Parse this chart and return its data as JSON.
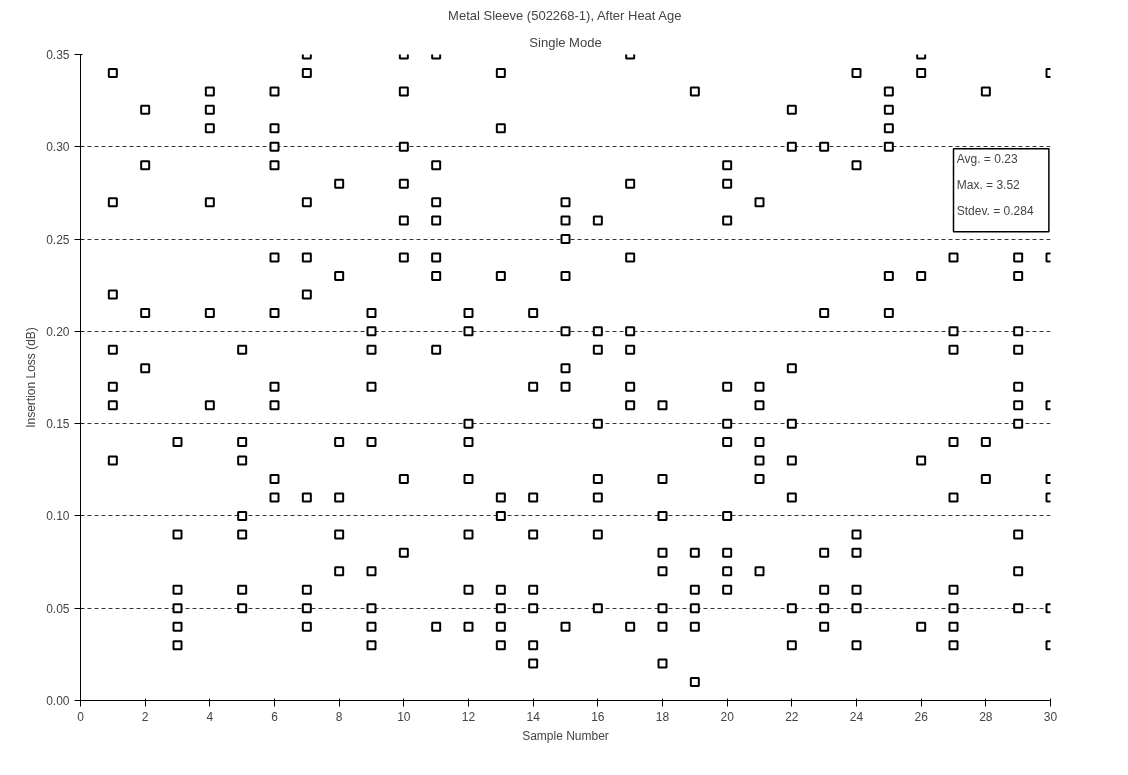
{
  "chart_data": {
    "type": "scatter",
    "title": "Metal Sleeve (502268-1), After Heat Age",
    "subtitle": "Single Mode",
    "xlabel": "Sample Number",
    "ylabel": "Insertion Loss (dB)",
    "annotations": [
      "Avg. = 0.23",
      "Max. = 3.52",
      "Stdev. = 0.284"
    ],
    "series": [
      {
        "color": "#000000",
        "x": [
          1,
          1,
          1,
          1,
          1,
          1,
          1,
          2,
          2,
          2,
          2,
          3,
          3,
          3,
          3,
          3,
          3,
          4,
          4,
          4,
          4,
          4,
          4,
          5,
          5,
          5,
          5,
          5,
          5,
          5,
          6,
          6,
          6,
          6,
          6,
          6,
          6,
          6,
          6,
          6,
          7,
          7,
          7,
          7,
          7,
          7,
          7,
          7,
          7,
          8,
          8,
          8,
          8,
          8,
          8,
          9,
          9,
          9,
          9,
          9,
          9,
          9,
          9,
          9,
          10,
          10,
          10,
          10,
          10,
          10,
          10,
          10,
          11,
          11,
          11,
          11,
          11,
          11,
          11,
          11,
          12,
          12,
          12,
          12,
          12,
          12,
          12,
          12,
          13,
          13,
          13,
          13,
          13,
          13,
          13,
          13,
          13,
          14,
          14,
          14,
          14,
          14,
          14,
          14,
          14,
          15,
          15,
          15,
          15,
          15,
          15,
          15,
          15,
          16,
          16,
          16,
          16,
          16,
          16,
          16,
          16,
          17,
          17,
          17,
          17,
          17,
          17,
          17,
          17,
          18,
          18,
          18,
          18,
          18,
          18,
          18,
          18,
          19,
          19,
          19,
          19,
          19,
          19,
          20,
          20,
          20,
          20,
          20,
          20,
          20,
          20,
          20,
          20,
          21,
          21,
          21,
          21,
          21,
          21,
          21,
          22,
          22,
          22,
          22,
          22,
          22,
          22,
          22,
          23,
          23,
          23,
          23,
          23,
          23,
          24,
          24,
          24,
          24,
          24,
          24,
          24,
          25,
          25,
          25,
          25,
          25,
          25,
          26,
          26,
          26,
          26,
          26,
          27,
          27,
          27,
          27,
          27,
          27,
          27,
          27,
          27,
          28,
          28,
          28,
          29,
          29,
          29,
          29,
          29,
          29,
          29,
          29,
          29,
          29,
          30,
          30,
          30,
          30,
          30,
          30,
          30
        ],
        "values": [
          0.34,
          0.27,
          0.22,
          0.19,
          0.17,
          0.16,
          0.13,
          0.32,
          0.29,
          0.21,
          0.18,
          0.14,
          0.09,
          0.06,
          0.05,
          0.04,
          0.03,
          0.33,
          0.32,
          0.31,
          0.27,
          0.21,
          0.16,
          0.19,
          0.14,
          0.13,
          0.1,
          0.09,
          0.06,
          0.05,
          0.33,
          0.31,
          0.3,
          0.29,
          0.24,
          0.21,
          0.17,
          0.16,
          0.12,
          0.11,
          0.35,
          0.34,
          0.27,
          0.24,
          0.22,
          0.11,
          0.06,
          0.05,
          0.04,
          0.28,
          0.23,
          0.14,
          0.11,
          0.09,
          0.07,
          0.21,
          0.2,
          0.19,
          0.17,
          0.14,
          0.07,
          0.05,
          0.04,
          0.03,
          0.35,
          0.33,
          0.3,
          0.28,
          0.26,
          0.24,
          0.12,
          0.08,
          0.35,
          0.29,
          0.27,
          0.26,
          0.24,
          0.23,
          0.19,
          0.04,
          0.21,
          0.2,
          0.15,
          0.14,
          0.12,
          0.09,
          0.06,
          0.04,
          0.34,
          0.31,
          0.23,
          0.11,
          0.1,
          0.06,
          0.05,
          0.04,
          0.03,
          0.21,
          0.17,
          0.11,
          0.09,
          0.06,
          0.05,
          0.03,
          0.02,
          0.27,
          0.26,
          0.25,
          0.23,
          0.2,
          0.18,
          0.17,
          0.04,
          0.26,
          0.2,
          0.19,
          0.15,
          0.12,
          0.11,
          0.09,
          0.05,
          0.35,
          0.28,
          0.24,
          0.2,
          0.19,
          0.17,
          0.16,
          0.04,
          0.16,
          0.12,
          0.1,
          0.08,
          0.07,
          0.05,
          0.04,
          0.02,
          0.33,
          0.08,
          0.06,
          0.05,
          0.04,
          0.01,
          0.29,
          0.28,
          0.26,
          0.17,
          0.15,
          0.14,
          0.1,
          0.08,
          0.07,
          0.06,
          0.27,
          0.17,
          0.16,
          0.14,
          0.13,
          0.12,
          0.07,
          0.32,
          0.3,
          0.18,
          0.15,
          0.13,
          0.11,
          0.05,
          0.03,
          0.3,
          0.21,
          0.08,
          0.06,
          0.05,
          0.04,
          0.34,
          0.29,
          0.09,
          0.08,
          0.06,
          0.05,
          0.03,
          0.33,
          0.32,
          0.31,
          0.3,
          0.23,
          0.21,
          0.35,
          0.34,
          0.23,
          0.13,
          0.04,
          0.24,
          0.2,
          0.19,
          0.14,
          0.11,
          0.06,
          0.05,
          0.04,
          0.03,
          0.33,
          0.14,
          0.12,
          0.24,
          0.23,
          0.2,
          0.19,
          0.17,
          0.16,
          0.15,
          0.09,
          0.07,
          0.05,
          0.34,
          0.24,
          0.16,
          0.12,
          0.11,
          0.05,
          0.03
        ]
      }
    ],
    "marker": "square",
    "grid": "y",
    "xlim": [
      0,
      30
    ],
    "xticks": [
      0,
      2,
      4,
      6,
      8,
      10,
      12,
      14,
      16,
      18,
      20,
      22,
      24,
      26,
      28,
      30
    ],
    "ylim": [
      0,
      0.35
    ],
    "yticks": [
      {
        "value": 0,
        "label": "0.00"
      },
      {
        "value": 0.05,
        "label": "0.05"
      },
      {
        "value": 0.1,
        "label": "0.10"
      },
      {
        "value": 0.15,
        "label": "0.15"
      },
      {
        "value": 0.2,
        "label": "0.20"
      },
      {
        "value": 0.25,
        "label": "0.25"
      },
      {
        "value": 0.3,
        "label": "0.30"
      },
      {
        "value": 0.35,
        "label": "0.35"
      }
    ]
  }
}
